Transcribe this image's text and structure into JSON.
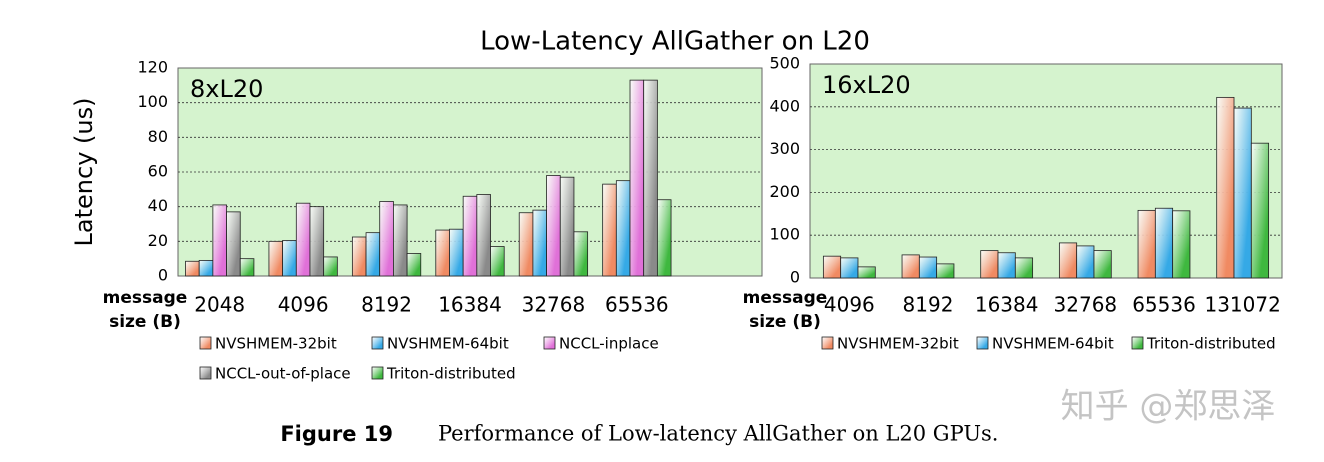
{
  "figure": {
    "title": "Low-Latency AllGather on L20",
    "caption_label": "Figure 19",
    "caption": "Performance of Low-latency AllGather on L20 GPUs.",
    "watermark": "知乎 @郑思泽"
  },
  "chart_data": [
    {
      "type": "bar",
      "annotation": "8xL20",
      "ylabel": "Latency (us)",
      "xlabel": [
        "message",
        "size (B)"
      ],
      "categories": [
        "2048",
        "4096",
        "8192",
        "16384",
        "32768",
        "65536",
        null
      ],
      "ylim": [
        0,
        120
      ],
      "yticks": [
        0,
        20,
        40,
        60,
        80,
        100,
        120
      ],
      "grid": true,
      "background": "#d5f3ce",
      "series": [
        {
          "name": "NVSHMEM-32bit",
          "color": "#f08a62",
          "values": [
            8.5,
            20,
            22.5,
            26.5,
            36.5,
            53,
            null
          ]
        },
        {
          "name": "NVSHMEM-64bit",
          "color": "#35a9e6",
          "values": [
            9,
            20.5,
            25,
            27,
            38,
            55,
            null
          ]
        },
        {
          "name": "NCCL-inplace",
          "color": "#e070d8",
          "values": [
            41,
            42,
            43,
            46,
            58,
            113,
            null
          ]
        },
        {
          "name": "NCCL-out-of-place",
          "color": "#8a8a8a",
          "values": [
            37,
            40,
            41,
            47,
            57,
            113,
            null
          ]
        },
        {
          "name": "Triton-distributed",
          "color": "#3fb83f",
          "values": [
            10,
            11,
            13,
            17,
            25.5,
            44,
            null
          ]
        }
      ]
    },
    {
      "type": "bar",
      "annotation": "16xL20",
      "xlabel": [
        "message",
        "size (B)"
      ],
      "categories": [
        "4096",
        "8192",
        "16384",
        "32768",
        "65536",
        "131072"
      ],
      "ylim": [
        0,
        500
      ],
      "yticks": [
        0,
        100,
        200,
        300,
        400,
        500
      ],
      "grid": true,
      "background": "#d5f3ce",
      "series": [
        {
          "name": "NVSHMEM-32bit",
          "color": "#f08a62",
          "values": [
            51,
            54,
            64,
            82,
            158,
            422
          ]
        },
        {
          "name": "NVSHMEM-64bit",
          "color": "#35a9e6",
          "values": [
            47,
            49,
            59,
            75,
            163,
            397
          ]
        },
        {
          "name": "Triton-distributed",
          "color": "#3fb83f",
          "values": [
            26,
            33,
            47,
            64,
            157,
            315
          ]
        }
      ]
    }
  ]
}
